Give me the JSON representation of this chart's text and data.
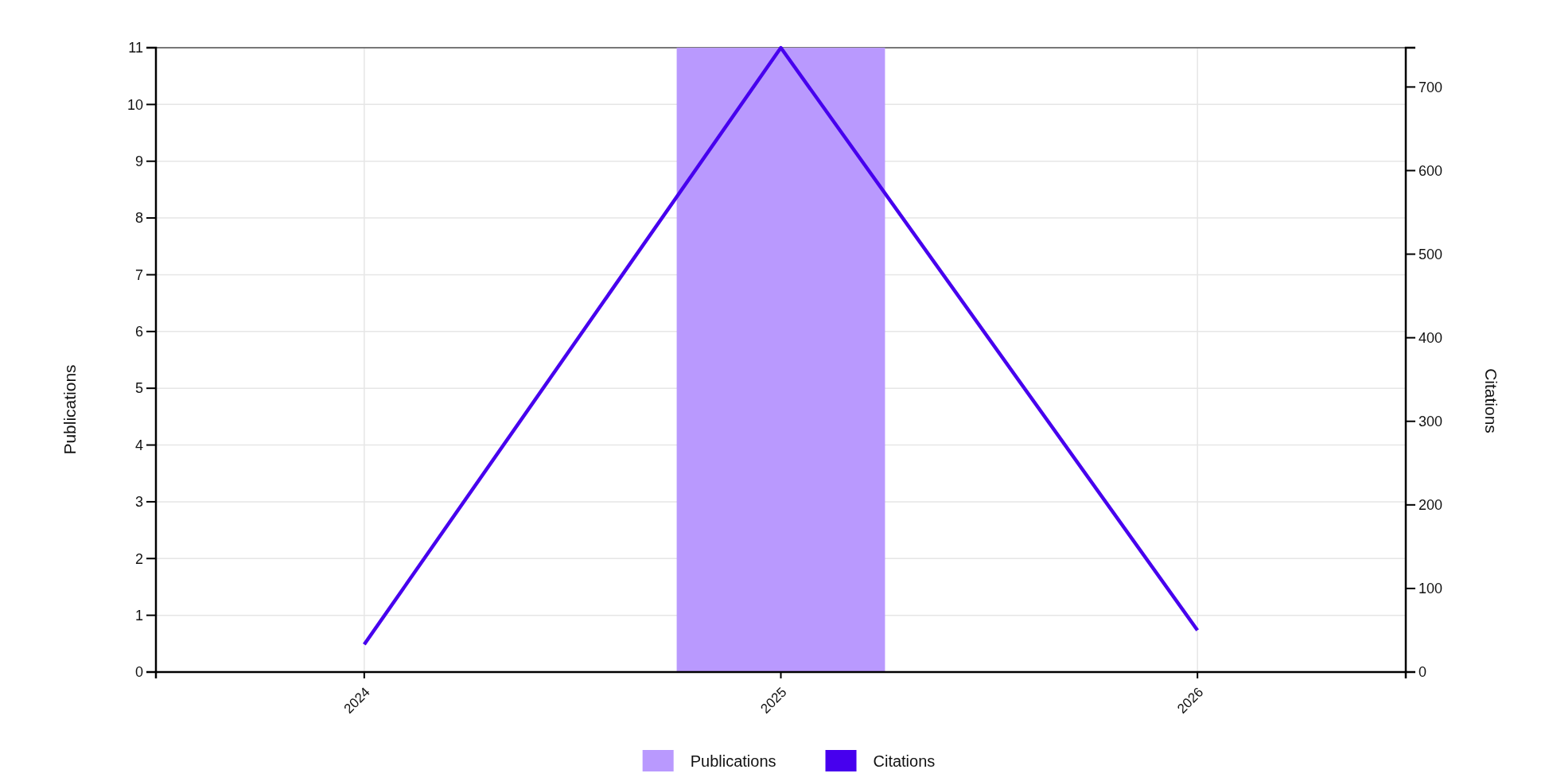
{
  "chart_data": {
    "type": "bar",
    "categories": [
      "2024",
      "2025",
      "2026"
    ],
    "series": [
      {
        "name": "Publications",
        "color": "#b999fe",
        "values": [
          0,
          11,
          0
        ]
      },
      {
        "name": "Citations",
        "type": "line",
        "axis": "y2",
        "color": "#4700ee",
        "values": [
          33,
          747,
          50
        ]
      }
    ],
    "ylabel": "Publications",
    "y2label": "Citations",
    "ylim": [
      0,
      11
    ],
    "yticks": [
      0,
      1,
      2,
      3,
      4,
      5,
      6,
      7,
      8,
      9,
      10,
      11
    ],
    "y2lim": [
      0,
      747
    ],
    "y2ticks": [
      0,
      100,
      200,
      300,
      400,
      500,
      600,
      700
    ],
    "grid": true,
    "legend": "bottom"
  }
}
